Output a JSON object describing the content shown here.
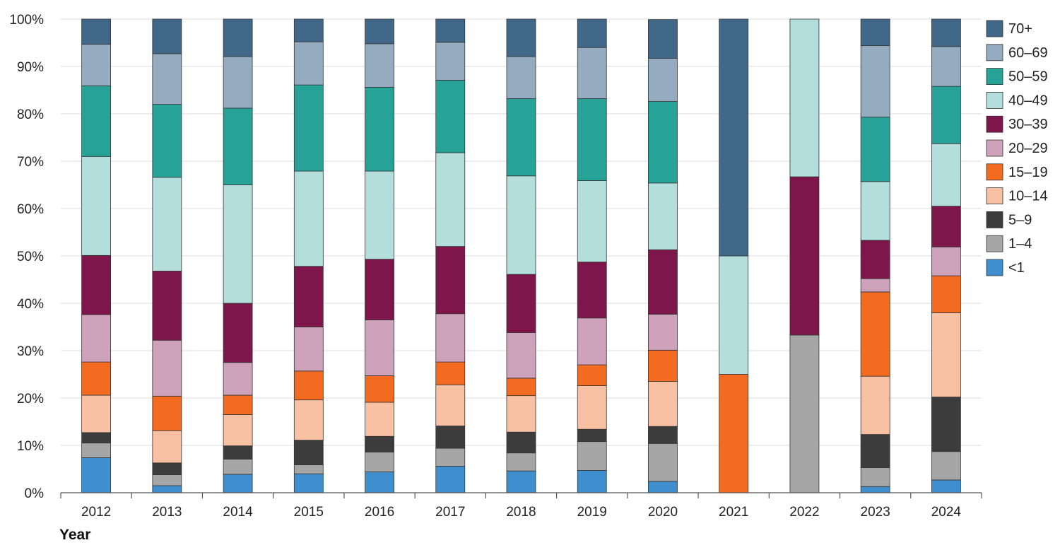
{
  "chart_data": {
    "type": "bar",
    "stacked": true,
    "normalized": true,
    "title": "",
    "xlabel": "Year",
    "ylabel": "",
    "ylim": [
      0,
      100
    ],
    "yticks": [
      "0%",
      "10%",
      "20%",
      "30%",
      "40%",
      "50%",
      "60%",
      "70%",
      "80%",
      "90%",
      "100%"
    ],
    "categories": [
      "2012",
      "2013",
      "2014",
      "2015",
      "2016",
      "2017",
      "2018",
      "2019",
      "2020",
      "2021",
      "2022",
      "2023",
      "2024"
    ],
    "legend_position": "right",
    "series": [
      {
        "name": "<1",
        "color": "#3f8fce",
        "values": [
          7.4,
          1.5,
          3.9,
          4.0,
          4.4,
          5.6,
          4.6,
          4.7,
          2.4,
          0,
          0,
          1.3,
          2.7
        ]
      },
      {
        "name": "1–4",
        "color": "#a6a6a6",
        "values": [
          3.1,
          2.3,
          3.2,
          1.9,
          4.2,
          3.8,
          3.8,
          6.1,
          8.0,
          0,
          33.3,
          4.0,
          6.0
        ]
      },
      {
        "name": "5–9",
        "color": "#3c3c3c",
        "values": [
          2.2,
          2.5,
          2.8,
          5.2,
          3.3,
          4.7,
          4.4,
          2.6,
          3.6,
          0,
          0,
          7.0,
          11.5
        ]
      },
      {
        "name": "10–14",
        "color": "#f9c1a4",
        "values": [
          7.9,
          6.8,
          6.6,
          8.5,
          7.2,
          8.7,
          7.7,
          9.2,
          9.5,
          0,
          0,
          12.3,
          17.8
        ]
      },
      {
        "name": "15–19",
        "color": "#f26b21",
        "values": [
          7.0,
          7.3,
          4.1,
          6.1,
          5.6,
          4.8,
          3.7,
          4.4,
          6.6,
          25.0,
          0,
          17.8,
          7.8
        ]
      },
      {
        "name": "20–29",
        "color": "#cda2ba",
        "values": [
          10.0,
          11.8,
          6.9,
          9.3,
          11.8,
          10.2,
          9.6,
          9.9,
          7.6,
          0,
          0,
          2.8,
          6.1
        ]
      },
      {
        "name": "30–39",
        "color": "#7e164b",
        "values": [
          12.5,
          14.6,
          12.5,
          12.8,
          12.8,
          14.2,
          12.3,
          11.8,
          13.6,
          0,
          33.4,
          8.1,
          8.6
        ]
      },
      {
        "name": "40–49",
        "color": "#b3dedb",
        "values": [
          20.9,
          19.8,
          25.0,
          20.1,
          18.6,
          19.8,
          20.8,
          17.2,
          14.1,
          25.0,
          33.3,
          12.4,
          13.2
        ]
      },
      {
        "name": "50–59",
        "color": "#27a296",
        "values": [
          14.9,
          15.4,
          16.2,
          18.2,
          17.7,
          15.3,
          16.3,
          17.3,
          17.2,
          0,
          0,
          13.6,
          12.1
        ]
      },
      {
        "name": "60–69",
        "color": "#95abc0",
        "values": [
          8.8,
          10.7,
          10.9,
          9.1,
          9.2,
          8.0,
          8.9,
          10.8,
          9.1,
          0,
          0,
          15.1,
          8.4
        ]
      },
      {
        "name": "70+",
        "color": "#416888",
        "values": [
          5.3,
          7.3,
          7.9,
          4.8,
          5.2,
          4.9,
          7.9,
          6.0,
          8.2,
          50.0,
          0,
          5.6,
          5.8
        ]
      }
    ]
  }
}
